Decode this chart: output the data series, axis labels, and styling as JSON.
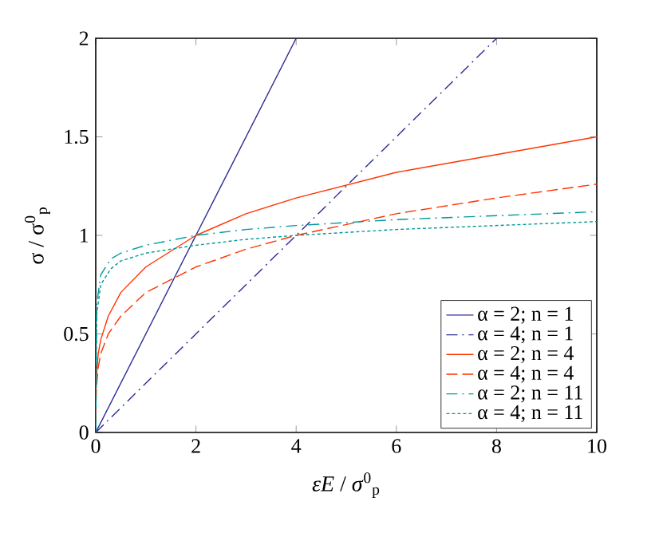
{
  "chart_data": {
    "type": "line",
    "xlabel": "*εE* / *σ*$^{0}$$_{p}$",
    "ylabel": "σ / σ$^{0}$$_{p}$",
    "xlim": [
      0,
      10
    ],
    "ylim": [
      0,
      2
    ],
    "xticks": [
      0,
      2,
      4,
      6,
      8,
      10
    ],
    "yticks": [
      0,
      0.5,
      1,
      1.5,
      2
    ],
    "grid": false,
    "legend": "bottom right",
    "marker": "none",
    "series": [
      {
        "name": "α = 2; n = 1",
        "color": "#2a2a96",
        "line_style": "solid",
        "x": [
          0,
          4
        ],
        "values": [
          0,
          2
        ]
      },
      {
        "name": "α = 4; n = 1",
        "color": "#2a2a96",
        "line_style": "dashdot",
        "x": [
          0,
          8
        ],
        "values": [
          0,
          2
        ]
      },
      {
        "name": "α = 2; n = 4",
        "color": "#ff3300",
        "line_style": "solid",
        "x": [
          0,
          0.01,
          0.05,
          0.1,
          0.25,
          0.5,
          1,
          2,
          3,
          4,
          6,
          8,
          10
        ],
        "values": [
          0,
          0.27,
          0.4,
          0.47,
          0.59,
          0.71,
          0.84,
          1.0,
          1.11,
          1.19,
          1.32,
          1.41,
          1.5
        ]
      },
      {
        "name": "α = 4; n = 4",
        "color": "#ff3300",
        "line_style": "dashed",
        "x": [
          0,
          0.01,
          0.05,
          0.1,
          0.25,
          0.5,
          1,
          2,
          3,
          4,
          6,
          8,
          10
        ],
        "values": [
          0,
          0.22,
          0.33,
          0.4,
          0.5,
          0.59,
          0.71,
          0.84,
          0.93,
          1.0,
          1.11,
          1.19,
          1.26
        ]
      },
      {
        "name": "α = 2; n = 11",
        "color": "#009999",
        "line_style": "dashdot",
        "x": [
          0,
          0.02,
          0.1,
          0.3,
          0.5,
          1,
          2,
          3,
          4,
          6,
          8,
          10
        ],
        "values": [
          0,
          0.65,
          0.8,
          0.88,
          0.91,
          0.95,
          1.0,
          1.03,
          1.05,
          1.08,
          1.1,
          1.12
        ]
      },
      {
        "name": "α = 4; n = 11",
        "color": "#009999",
        "line_style": "dotted",
        "x": [
          0,
          0.02,
          0.1,
          0.3,
          0.5,
          1,
          2,
          3,
          4,
          6,
          8,
          10
        ],
        "values": [
          0,
          0.6,
          0.75,
          0.83,
          0.87,
          0.91,
          0.95,
          0.98,
          1.0,
          1.03,
          1.05,
          1.07
        ]
      }
    ]
  }
}
